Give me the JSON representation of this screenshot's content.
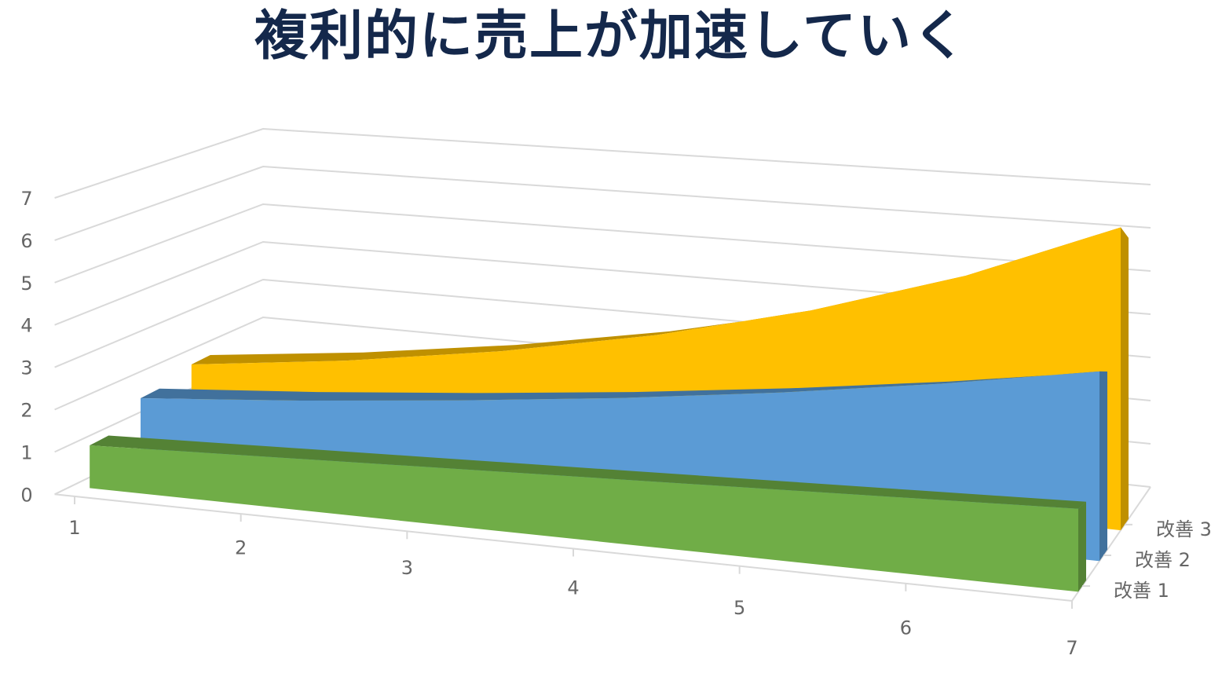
{
  "chart_data": {
    "type": "area",
    "subtype": "3d-area",
    "title": "複利的に売上が加速していく",
    "categories": [
      "1",
      "2",
      "3",
      "4",
      "5",
      "6",
      "7"
    ],
    "y_ticks": [
      "0",
      "1",
      "2",
      "3",
      "4",
      "5",
      "6",
      "7"
    ],
    "ylim": [
      0,
      7
    ],
    "grid": true,
    "series": [
      {
        "name": "改善 1",
        "values": [
          1,
          1,
          1,
          1,
          1,
          1,
          1
        ],
        "color": "#70ad47",
        "top_color": "#548235"
      },
      {
        "name": "改善 2",
        "values": [
          1.5,
          1.65,
          1.82,
          2.0,
          2.2,
          2.42,
          2.66
        ],
        "color": "#5b9bd5",
        "top_color": "#41719c"
      },
      {
        "name": "改善 3",
        "values": [
          1.7,
          2.04,
          2.45,
          2.94,
          3.53,
          4.23,
          5.08
        ],
        "color": "#ffc000",
        "top_color": "#bf9000"
      }
    ],
    "title_color": "#14284b"
  }
}
